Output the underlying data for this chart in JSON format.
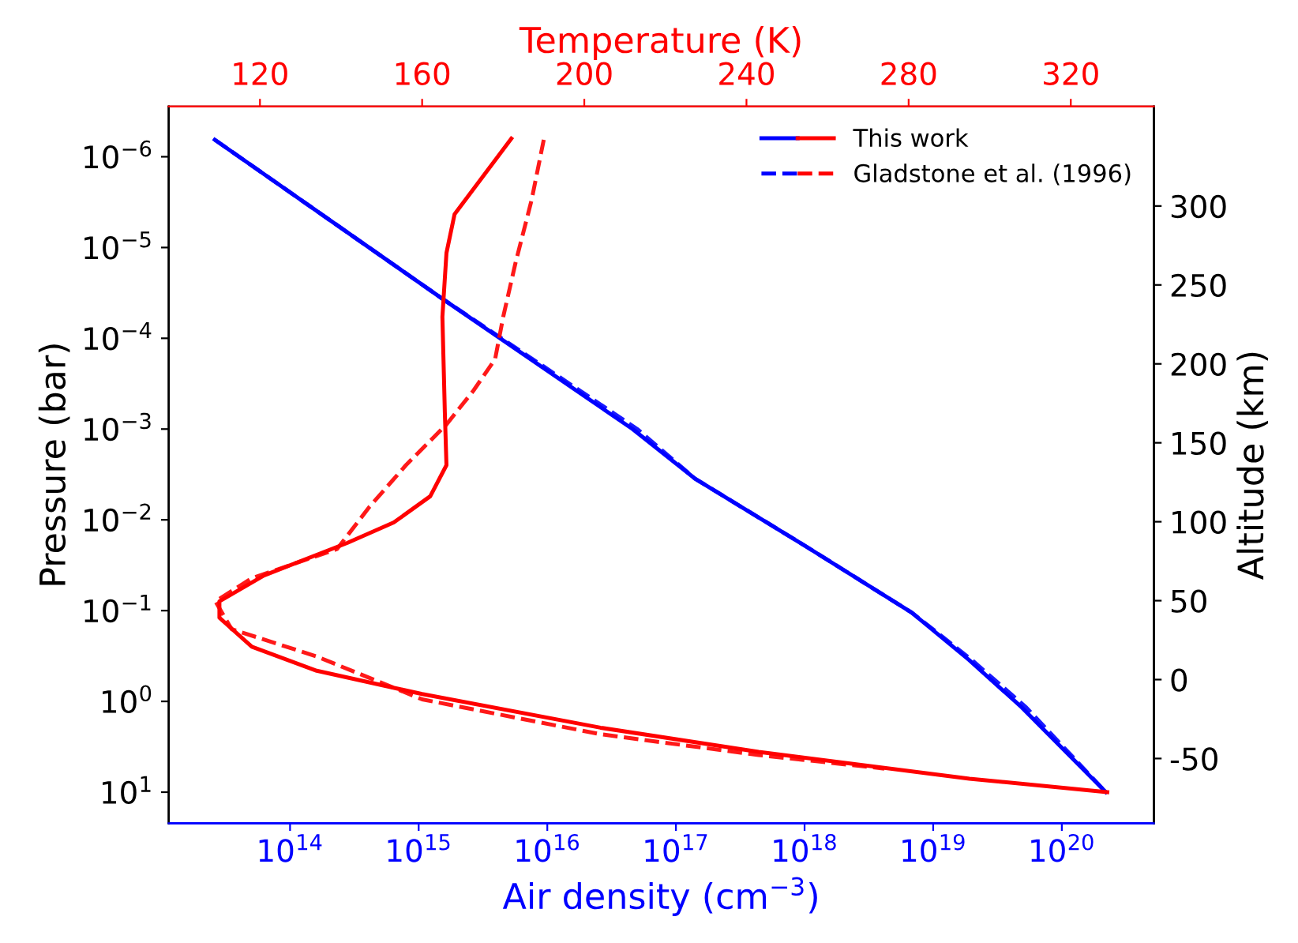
{
  "chart_data": {
    "type": "line",
    "xlabel": "Air density (cm$^{−3}$)",
    "ylabel": "Pressure (bar)",
    "x2label": "Temperature (K)",
    "y2label": "Altitude (km)",
    "log": "xy",
    "legend": "top right",
    "grid": false,
    "xlim": [
      11400000000000.0,
      5.2e+20
    ],
    "ylim": [
      22,
      2.8e-07
    ],
    "x2lim": [
      97.5,
      340.5
    ],
    "y2lim": [
      -91,
      363
    ],
    "xticks": [
      {
        "value": 100000000000000.0,
        "label": "10$^{14}$"
      },
      {
        "value": 1000000000000000.0,
        "label": "10$^{15}$"
      },
      {
        "value": 1e+16,
        "label": "10$^{16}$"
      },
      {
        "value": 1e+17,
        "label": "10$^{17}$"
      },
      {
        "value": 1e+18,
        "label": "10$^{18}$"
      },
      {
        "value": 1e+19,
        "label": "10$^{19}$"
      },
      {
        "value": 1e+20,
        "label": "10$^{20}$"
      }
    ],
    "yticks": [
      {
        "value": 1e-06,
        "label": "10$^{−6}$"
      },
      {
        "value": 1e-05,
        "label": "10$^{−5}$"
      },
      {
        "value": 0.0001,
        "label": "10$^{−4}$"
      },
      {
        "value": 0.001,
        "label": "10$^{−3}$"
      },
      {
        "value": 0.01,
        "label": "10$^{−2}$"
      },
      {
        "value": 0.1,
        "label": "10$^{−1}$"
      },
      {
        "value": 1,
        "label": "10$^{0}$"
      },
      {
        "value": 10,
        "label": "10$^{1}$"
      }
    ],
    "x2ticks": [
      120,
      160,
      200,
      240,
      280,
      320
    ],
    "y2ticks": [
      300,
      250,
      200,
      150,
      100,
      50,
      0,
      -50
    ],
    "series": [
      {
        "name": "This work",
        "color": "#0000ff",
        "line_style": "solid",
        "x": [
          26000000000000.0,
          1500000000000000.0,
          4.6e+16,
          1.4e+17,
          9.3e+17,
          6.8e+18,
          1.9e+19,
          4.9e+19,
          2.2e+20
        ],
        "values": [
          6.5e-07,
          3.6e-05,
          0.001,
          0.0035,
          0.018,
          0.105,
          0.35,
          1.17,
          10
        ]
      },
      {
        "name": "Gladstone et al. (1996)",
        "color": "#0000ff",
        "line_style": "dashed",
        "x": [
          26000000000000.0,
          1500000000000000.0,
          5e+16,
          1.4e+17,
          9.3e+17,
          6.8e+18,
          2e+19,
          5.3e+19,
          2.2e+20
        ],
        "values": [
          6.5e-07,
          3.6e-05,
          0.001,
          0.0035,
          0.018,
          0.105,
          0.35,
          1.17,
          10
        ]
      },
      {
        "color": "#ff0000",
        "line_style": "solid",
        "axis": "x2",
        "x": [
          182,
          168,
          166,
          165,
          165.6,
          166,
          162,
          153,
          141.5,
          121,
          110,
          110,
          118,
          134,
          160,
          204,
          243,
          295,
          329
        ],
        "values": [
          6.3e-07,
          4.3e-06,
          1.15e-05,
          5.8e-05,
          0.00065,
          0.0025,
          0.0055,
          0.0107,
          0.018,
          0.041,
          0.079,
          0.12,
          0.25,
          0.46,
          0.83,
          1.95,
          3.6,
          7.1,
          10
        ]
      },
      {
        "color": "#ff0000",
        "line_style": "dashed",
        "axis": "x2",
        "x": [
          190,
          187,
          183,
          180,
          178,
          172.6,
          166,
          156,
          147,
          139,
          118,
          109,
          113,
          134,
          160,
          204,
          243,
          274
        ],
        "values": [
          6.5e-07,
          3e-06,
          1.5e-05,
          5.8e-05,
          0.00017,
          0.00038,
          0.00089,
          0.0025,
          0.0072,
          0.021,
          0.044,
          0.079,
          0.16,
          0.32,
          0.95,
          2.3,
          3.9,
          5.5
        ]
      }
    ]
  }
}
